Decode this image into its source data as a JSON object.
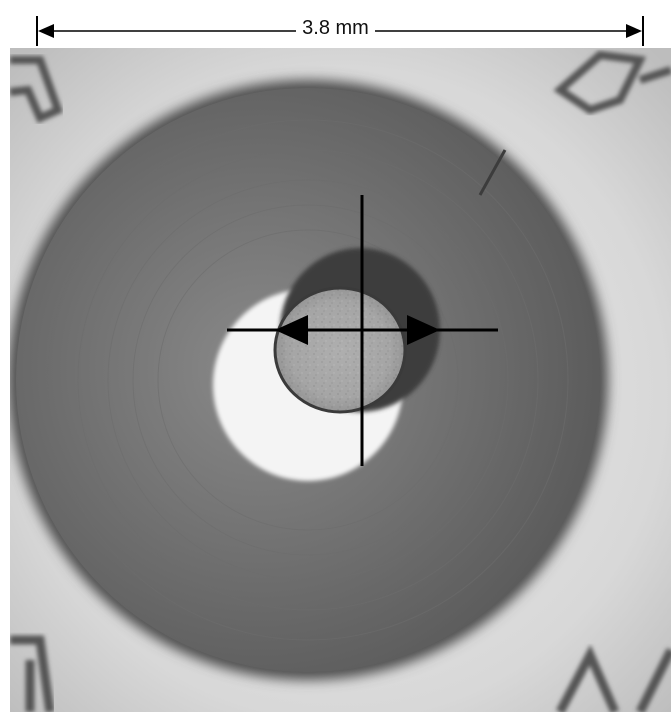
{
  "scale_bar": {
    "label": "3.8 mm"
  },
  "colors": {
    "background": "#d9d9d9",
    "ring": "#5f5f5f",
    "aperture": "#f4f4f4",
    "sample_dark": "#444444",
    "sample_texture": "#b8b8b8",
    "marker_line": "#000000"
  },
  "icons": {
    "corner_markings": "engraved-arrow-glyphs",
    "crosshair": "crosshair-icon"
  }
}
